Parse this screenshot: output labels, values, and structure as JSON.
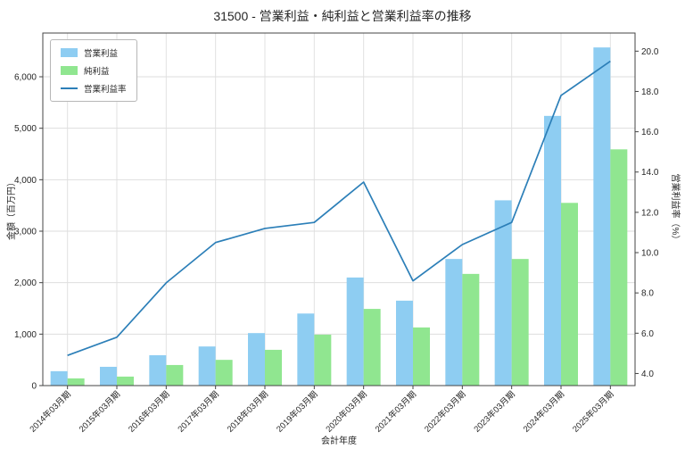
{
  "chart_data": {
    "type": "bar",
    "title": "31500 - 営業利益・純利益と営業利益率の推移",
    "xlabel": "会計年度",
    "ylabel_left": "金額（百万円）",
    "ylabel_right": "営業利益率（%）",
    "categories": [
      "2014年03月期",
      "2015年03月期",
      "2016年03月期",
      "2017年03月期",
      "2018年03月期",
      "2019年03月期",
      "2020年03月期",
      "2021年03月期",
      "2022年03月期",
      "2023年03月期",
      "2024年03月期",
      "2025年03月期"
    ],
    "series": [
      {
        "key": "operating-profit",
        "name": "営業利益",
        "type": "bar",
        "axis": "left",
        "color": "#8ecdf2",
        "values": [
          280,
          365,
          590,
          760,
          1020,
          1400,
          2100,
          1650,
          2460,
          3600,
          5240,
          6570
        ]
      },
      {
        "key": "net-profit",
        "name": "純利益",
        "type": "bar",
        "axis": "left",
        "color": "#90e690",
        "values": [
          140,
          175,
          400,
          500,
          695,
          990,
          1490,
          1130,
          2170,
          2460,
          3550,
          4590
        ]
      },
      {
        "key": "operating-margin",
        "name": "営業利益率",
        "type": "line",
        "axis": "right",
        "color": "#2c7fb8",
        "values": [
          4.9,
          5.8,
          8.5,
          10.5,
          11.2,
          11.5,
          13.5,
          8.6,
          10.4,
          11.5,
          17.8,
          19.5
        ]
      }
    ],
    "ylim_left": [
      0,
      6850
    ],
    "ylim_right": [
      3.4,
      20.9
    ],
    "yticks_left": [
      0,
      1000,
      2000,
      3000,
      4000,
      5000,
      6000
    ],
    "yticks_right": [
      4.0,
      6.0,
      8.0,
      10.0,
      12.0,
      14.0,
      16.0,
      18.0,
      20.0
    ],
    "grid": true,
    "legend_position": "upper left"
  }
}
